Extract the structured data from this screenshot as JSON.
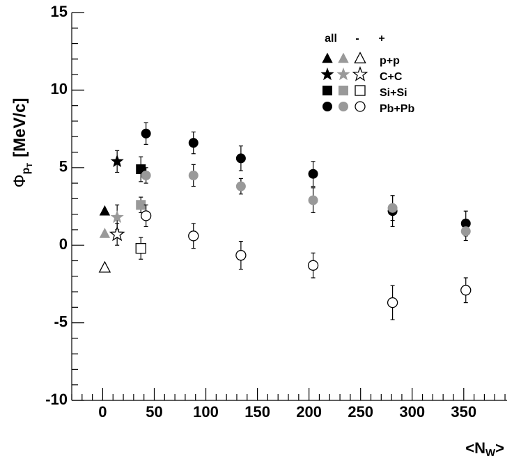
{
  "chart_data": {
    "type": "scatter",
    "xlabel": {
      "main": "<N",
      "sub": "W",
      "end": ">"
    },
    "ylabel": {
      "symbol": "Φ",
      "sub": "p",
      "subsub": "T",
      "unit": "[MeV/c]"
    },
    "xlim": [
      -30,
      392
    ],
    "xticks": [
      0,
      50,
      100,
      150,
      200,
      250,
      300,
      350
    ],
    "ylim": [
      -10,
      15
    ],
    "yticks": [
      -10,
      -5,
      0,
      5,
      10,
      15
    ],
    "charges": [
      {
        "name": "all",
        "color": "#000000",
        "filled": true
      },
      {
        "name": "-",
        "color": "#999999",
        "filled": true
      },
      {
        "name": "+",
        "color": "#000000",
        "filled": false
      }
    ],
    "series": [
      {
        "name": "p+p",
        "marker": "triangle",
        "x": [
          2
        ],
        "charges": [
          {
            "values": [
              2.2
            ],
            "errors": [
              null
            ]
          },
          {
            "values": [
              0.75
            ],
            "errors": [
              null
            ]
          },
          {
            "values": [
              -1.45
            ],
            "errors": [
              null
            ]
          }
        ]
      },
      {
        "name": "C+C",
        "marker": "star",
        "x": [
          14
        ],
        "charges": [
          {
            "values": [
              5.4
            ],
            "errors": [
              0.7
            ]
          },
          {
            "values": [
              1.8
            ],
            "errors": [
              0.8
            ]
          },
          {
            "values": [
              0.7
            ],
            "errors": [
              0.7
            ]
          }
        ]
      },
      {
        "name": "Si+Si",
        "marker": "square",
        "x": [
          37
        ],
        "charges": [
          {
            "values": [
              4.9
            ],
            "errors": [
              0.8
            ]
          },
          {
            "values": [
              2.6
            ],
            "errors": [
              0.5
            ]
          },
          {
            "values": [
              -0.2
            ],
            "errors": [
              0.7
            ]
          }
        ]
      },
      {
        "name": "Pb+Pb",
        "marker": "circle",
        "x": [
          42,
          88,
          134,
          204,
          281,
          352
        ],
        "charges": [
          {
            "values": [
              7.2,
              6.6,
              5.6,
              4.6,
              2.2,
              1.4
            ],
            "errors": [
              0.7,
              0.7,
              0.8,
              0.8,
              1.0,
              0.8
            ]
          },
          {
            "values": [
              4.5,
              4.5,
              3.8,
              2.9,
              2.4,
              0.9
            ],
            "errors": [
              0.5,
              0.7,
              0.5,
              0.8,
              0.8,
              0.6
            ]
          },
          {
            "values": [
              1.9,
              0.6,
              -0.65,
              -1.3,
              -3.7,
              -2.9
            ],
            "errors": [
              0.7,
              0.8,
              0.9,
              0.8,
              1.1,
              0.8
            ]
          }
        ]
      }
    ]
  }
}
